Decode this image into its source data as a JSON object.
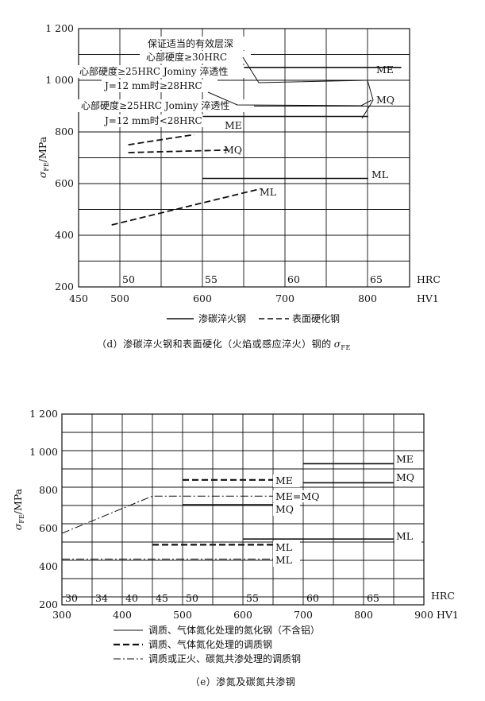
{
  "chart_d": {
    "caption_prefix": "（d）渗碳淬火钢和表面硬化（火焰或感应淬火）钢的",
    "caption_symbol": "σ",
    "caption_sub": "FE",
    "ylabel_symbol": "σ",
    "ylabel_sub": "FE",
    "ylabel_unit": "/MPa",
    "y_ticks": [
      "1 200",
      "1 000",
      "800",
      "600",
      "400",
      "200"
    ],
    "hv_ticks": [
      "450",
      "500",
      "600",
      "700",
      "800"
    ],
    "hv_unit": "HV1",
    "hrc_ticks": [
      "50",
      "55",
      "60",
      "65"
    ],
    "hrc_unit": "HRC",
    "annotations": [
      "保证适当的有效层深",
      "心部硬度≥30HRC",
      "心部硬度≥25HRC Jominy 淬透性",
      "J=12 mm时≥28HRC",
      "心部硬度≥25HRC Jominy 淬透性",
      "J=12 mm时<28HRC"
    ],
    "legend": [
      "渗碳淬火钢",
      "表面硬化钢"
    ],
    "line_labels": [
      "ME",
      "MQ",
      "ML",
      "ME",
      "MQ",
      "ML"
    ]
  },
  "chart_e": {
    "caption": "（e）渗氮及碳氮共渗钢",
    "ylabel_symbol": "σ",
    "ylabel_sub": "FE",
    "ylabel_unit": "/MPa",
    "y_ticks": [
      "1 200",
      "1 000",
      "800",
      "600",
      "400",
      "200"
    ],
    "hv_ticks": [
      "300",
      "400",
      "500",
      "600",
      "700",
      "800",
      "900"
    ],
    "hv_unit": "HV1",
    "hrc_ticks": [
      "30",
      "34",
      "40",
      "45",
      "50",
      "55",
      "60",
      "65"
    ],
    "hrc_unit": "HRC",
    "legend": [
      "调质、气体氮化处理的氮化钢（不含铝）",
      "调质、气体氮化处理的调质钢",
      "调质或正火、碳氮共渗处理的调质钢"
    ],
    "line_labels": [
      "ME",
      "MQ",
      "ME",
      "ME=MQ",
      "MQ",
      "ML",
      "ML",
      "ML"
    ]
  },
  "chart_data": [
    {
      "type": "line",
      "x_unit": "HV1",
      "y_unit": "MPa",
      "xlim": [
        450,
        850
      ],
      "ylim": [
        200,
        1200
      ],
      "series": [
        {
          "x": [
            650,
            840
          ],
          "y": [
            1050,
            1050
          ],
          "style": "solid"
        },
        {
          "x": [
            600,
            800
          ],
          "y": [
            860,
            860
          ],
          "style": "solid"
        },
        {
          "x": [
            600,
            800
          ],
          "y": [
            620,
            620
          ],
          "style": "solid"
        },
        {
          "x": [
            510,
            590
          ],
          "y": [
            750,
            790
          ],
          "style": "dashed"
        },
        {
          "x": [
            510,
            630
          ],
          "y": [
            720,
            730
          ],
          "style": "dashed"
        },
        {
          "x": [
            490,
            670
          ],
          "y": [
            440,
            580
          ],
          "style": "dashed"
        }
      ]
    },
    {
      "type": "line",
      "x_unit": "HV1",
      "y_unit": "MPa",
      "xlim": [
        300,
        900
      ],
      "ylim": [
        200,
        1200
      ],
      "series": [
        {
          "x": [
            700,
            850
          ],
          "y": [
            940,
            940
          ],
          "style": "solid"
        },
        {
          "x": [
            700,
            850
          ],
          "y": [
            840,
            840
          ],
          "style": "solid"
        },
        {
          "x": [
            500,
            650
          ],
          "y": [
            725,
            725
          ],
          "style": "solid"
        },
        {
          "x": [
            600,
            850
          ],
          "y": [
            545,
            545
          ],
          "style": "solid"
        },
        {
          "x": [
            500,
            650
          ],
          "y": [
            855,
            855
          ],
          "style": "dashed"
        },
        {
          "x": [
            450,
            650
          ],
          "y": [
            515,
            515
          ],
          "style": "dashed"
        },
        {
          "x": [
            300,
            450,
            650
          ],
          "y": [
            575,
            770,
            770
          ],
          "style": "dashdot"
        },
        {
          "x": [
            300,
            650
          ],
          "y": [
            440,
            440
          ],
          "style": "dashdot"
        }
      ]
    }
  ]
}
